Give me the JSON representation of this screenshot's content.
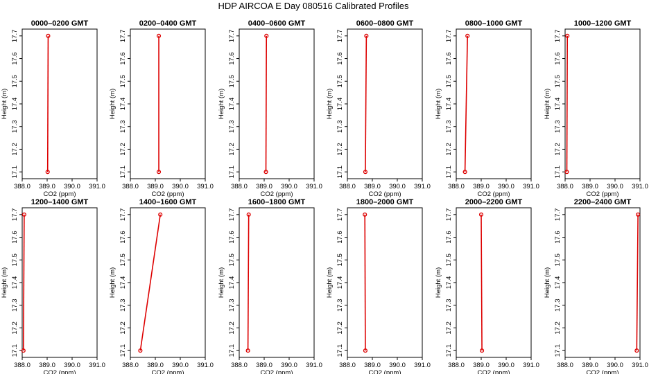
{
  "figure": {
    "title": "HDP  AIRCOA E  Day 080516  Calibrated Profiles",
    "series_color": "#dd0000"
  },
  "chart_data": [
    {
      "type": "line",
      "title": "0000–0200 GMT",
      "xlabel": "CO2 (ppm)",
      "ylabel": "Height (m)",
      "xlim": [
        388.0,
        391.0
      ],
      "ylim": [
        17.07,
        17.73
      ],
      "xticks": [
        "388.0",
        "389.0",
        "390.0",
        "391.0"
      ],
      "yticks": [
        "17.1",
        "17.2",
        "17.3",
        "17.4",
        "17.5",
        "17.6",
        "17.7"
      ],
      "x": [
        389.02,
        389.04
      ],
      "y": [
        17.1,
        17.7
      ]
    },
    {
      "type": "line",
      "title": "0200–0400 GMT",
      "xlabel": "CO2 (ppm)",
      "ylabel": "Height (m)",
      "xlim": [
        388.0,
        391.0
      ],
      "ylim": [
        17.07,
        17.73
      ],
      "xticks": [
        "388.0",
        "389.0",
        "390.0",
        "391.0"
      ],
      "yticks": [
        "17.1",
        "17.2",
        "17.3",
        "17.4",
        "17.5",
        "17.6",
        "17.7"
      ],
      "x": [
        389.14,
        389.14
      ],
      "y": [
        17.1,
        17.7
      ]
    },
    {
      "type": "line",
      "title": "0400–0600 GMT",
      "xlabel": "CO2 (ppm)",
      "ylabel": "Height (m)",
      "xlim": [
        388.0,
        391.0
      ],
      "ylim": [
        17.07,
        17.73
      ],
      "xticks": [
        "388.0",
        "389.0",
        "390.0",
        "391.0"
      ],
      "yticks": [
        "17.1",
        "17.2",
        "17.3",
        "17.4",
        "17.5",
        "17.6",
        "17.7"
      ],
      "x": [
        389.07,
        389.09
      ],
      "y": [
        17.1,
        17.7
      ]
    },
    {
      "type": "line",
      "title": "0600–0800 GMT",
      "xlabel": "CO2 (ppm)",
      "ylabel": "Height (m)",
      "xlim": [
        388.0,
        391.0
      ],
      "ylim": [
        17.07,
        17.73
      ],
      "xticks": [
        "388.0",
        "389.0",
        "390.0",
        "391.0"
      ],
      "yticks": [
        "17.1",
        "17.2",
        "17.3",
        "17.4",
        "17.5",
        "17.6",
        "17.7"
      ],
      "x": [
        388.72,
        388.76
      ],
      "y": [
        17.1,
        17.7
      ]
    },
    {
      "type": "line",
      "title": "0800–1000 GMT",
      "xlabel": "CO2 (ppm)",
      "ylabel": "Height (m)",
      "xlim": [
        388.0,
        391.0
      ],
      "ylim": [
        17.07,
        17.73
      ],
      "xticks": [
        "388.0",
        "389.0",
        "390.0",
        "391.0"
      ],
      "yticks": [
        "17.1",
        "17.2",
        "17.3",
        "17.4",
        "17.5",
        "17.6",
        "17.7"
      ],
      "x": [
        388.35,
        388.45
      ],
      "y": [
        17.1,
        17.7
      ]
    },
    {
      "type": "line",
      "title": "1000–1200 GMT",
      "xlabel": "CO2 (ppm)",
      "ylabel": "Height (m)",
      "xlim": [
        388.0,
        391.0
      ],
      "ylim": [
        17.07,
        17.73
      ],
      "xticks": [
        "388.0",
        "389.0",
        "390.0",
        "391.0"
      ],
      "yticks": [
        "17.1",
        "17.2",
        "17.3",
        "17.4",
        "17.5",
        "17.6",
        "17.7"
      ],
      "x": [
        388.07,
        388.09
      ],
      "y": [
        17.1,
        17.7
      ]
    },
    {
      "type": "line",
      "title": "1200–1400 GMT",
      "xlabel": "CO2 (ppm)",
      "ylabel": "Height (m)",
      "xlim": [
        388.0,
        391.0
      ],
      "ylim": [
        17.07,
        17.73
      ],
      "xticks": [
        "388.0",
        "389.0",
        "390.0",
        "391.0"
      ],
      "yticks": [
        "17.1",
        "17.2",
        "17.3",
        "17.4",
        "17.5",
        "17.6",
        "17.7"
      ],
      "x": [
        388.05,
        388.08
      ],
      "y": [
        17.1,
        17.7
      ]
    },
    {
      "type": "line",
      "title": "1400–1600 GMT",
      "xlabel": "CO2 (ppm)",
      "ylabel": "Height (m)",
      "xlim": [
        388.0,
        391.0
      ],
      "ylim": [
        17.07,
        17.73
      ],
      "xticks": [
        "388.0",
        "389.0",
        "390.0",
        "391.0"
      ],
      "yticks": [
        "17.1",
        "17.2",
        "17.3",
        "17.4",
        "17.5",
        "17.6",
        "17.7"
      ],
      "x": [
        388.4,
        389.2
      ],
      "y": [
        17.1,
        17.7
      ]
    },
    {
      "type": "line",
      "title": "1600–1800 GMT",
      "xlabel": "CO2 (ppm)",
      "ylabel": "Height (m)",
      "xlim": [
        388.0,
        391.0
      ],
      "ylim": [
        17.07,
        17.73
      ],
      "xticks": [
        "388.0",
        "389.0",
        "390.0",
        "391.0"
      ],
      "yticks": [
        "17.1",
        "17.2",
        "17.3",
        "17.4",
        "17.5",
        "17.6",
        "17.7"
      ],
      "x": [
        388.35,
        388.38
      ],
      "y": [
        17.1,
        17.7
      ]
    },
    {
      "type": "line",
      "title": "1800–2000 GMT",
      "xlabel": "CO2 (ppm)",
      "ylabel": "Height (m)",
      "xlim": [
        388.0,
        391.0
      ],
      "ylim": [
        17.07,
        17.73
      ],
      "xticks": [
        "388.0",
        "389.0",
        "390.0",
        "391.0"
      ],
      "yticks": [
        "17.1",
        "17.2",
        "17.3",
        "17.4",
        "17.5",
        "17.6",
        "17.7"
      ],
      "x": [
        388.72,
        388.7
      ],
      "y": [
        17.1,
        17.7
      ]
    },
    {
      "type": "line",
      "title": "2000–2200 GMT",
      "xlabel": "CO2 (ppm)",
      "ylabel": "Height (m)",
      "xlim": [
        388.0,
        391.0
      ],
      "ylim": [
        17.07,
        17.73
      ],
      "xticks": [
        "388.0",
        "389.0",
        "390.0",
        "391.0"
      ],
      "yticks": [
        "17.1",
        "17.2",
        "17.3",
        "17.4",
        "17.5",
        "17.6",
        "17.7"
      ],
      "x": [
        389.03,
        389.0
      ],
      "y": [
        17.1,
        17.7
      ]
    },
    {
      "type": "line",
      "title": "2200–2400 GMT",
      "xlabel": "CO2 (ppm)",
      "ylabel": "Height (m)",
      "xlim": [
        388.0,
        391.0
      ],
      "ylim": [
        17.07,
        17.73
      ],
      "xticks": [
        "388.0",
        "389.0",
        "390.0",
        "391.0"
      ],
      "yticks": [
        "17.1",
        "17.2",
        "17.3",
        "17.4",
        "17.5",
        "17.6",
        "17.7"
      ],
      "x": [
        390.87,
        390.92
      ],
      "y": [
        17.1,
        17.7
      ]
    }
  ]
}
